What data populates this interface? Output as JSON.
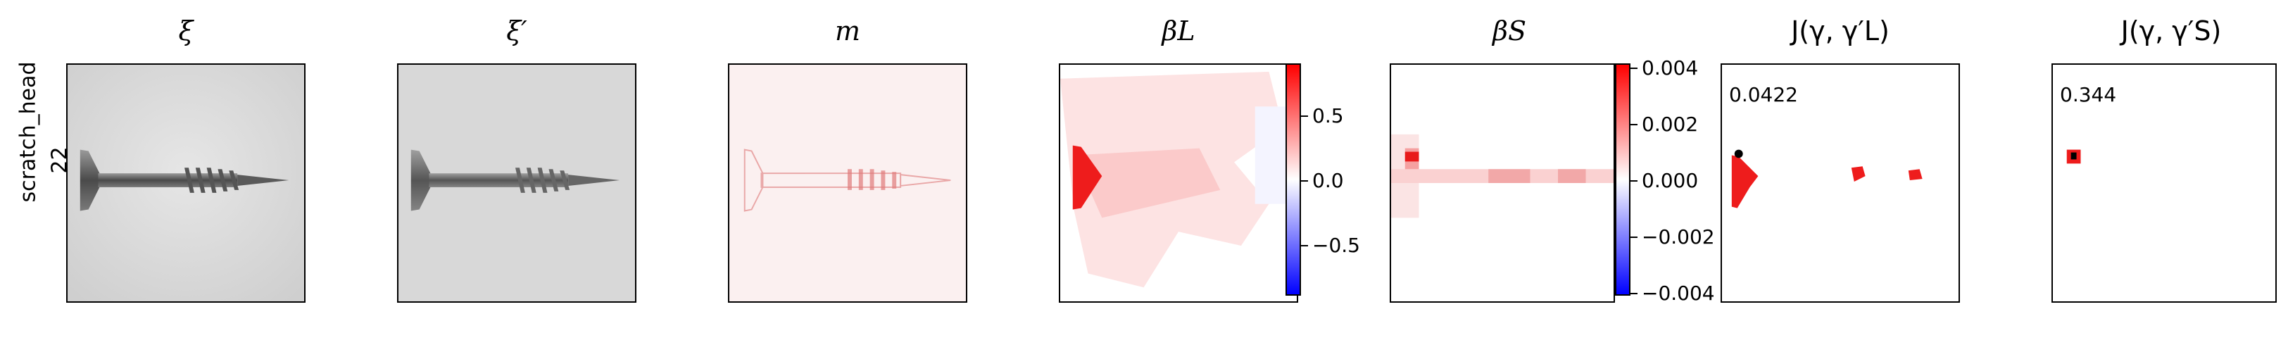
{
  "row": {
    "category": "scratch_head",
    "index": "22"
  },
  "panels": [
    {
      "id": "xi",
      "title": "ξ"
    },
    {
      "id": "xi_prime",
      "title": "ξ′"
    },
    {
      "id": "m",
      "title": "m"
    },
    {
      "id": "beta_L",
      "title": "βL"
    },
    {
      "id": "beta_S",
      "title": "βS"
    },
    {
      "id": "J_L",
      "title": "J(γ, γ′L)",
      "value": "0.0422"
    },
    {
      "id": "J_S",
      "title": "J(γ, γ′S)",
      "value": "0.344"
    }
  ],
  "colorbars": {
    "beta_L": {
      "ticks": [
        "0.5",
        "0.0",
        "−0.5"
      ],
      "range": [
        -0.85,
        0.85
      ],
      "colors": [
        "#0000ff",
        "#ffffff",
        "#ff0000"
      ]
    },
    "beta_S": {
      "ticks": [
        "0.004",
        "0.002",
        "0.000",
        "−0.002",
        "−0.004"
      ],
      "range": [
        -0.0042,
        0.0042
      ],
      "colors": [
        "#0000ff",
        "#ffffff",
        "#ff0000"
      ]
    }
  },
  "colors": {
    "heat_red": "#ff0000",
    "light_red": "#fde0e0",
    "screw_gray": "#6e6e6e",
    "bg_gray": "#dcdcdc"
  }
}
